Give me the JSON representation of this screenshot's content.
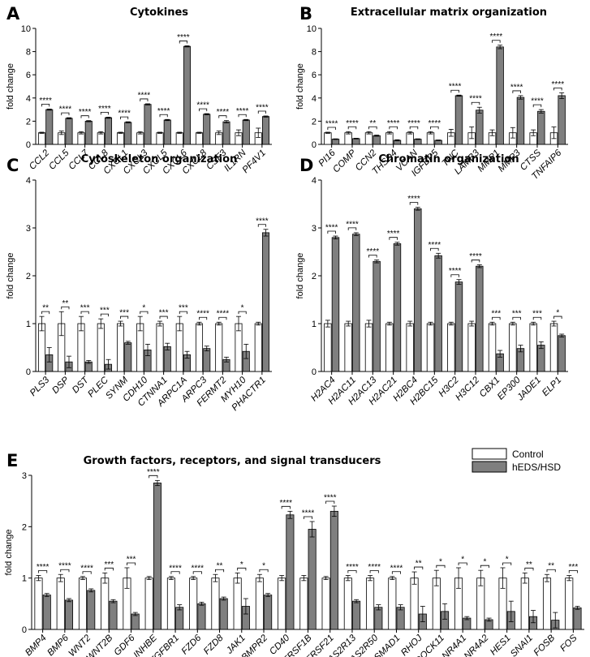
{
  "legend": {
    "control": "Control",
    "patient": "hEDS/HSD",
    "control_color": "#ffffff",
    "patient_color": "#7f7f7f"
  },
  "chart_data": [
    {
      "id": "A",
      "panel_label": "A",
      "type": "bar",
      "title": "Cytokines",
      "ylabel": "fold change",
      "ylim": [
        0,
        10
      ],
      "yticks": [
        0,
        2,
        4,
        6,
        8,
        10
      ],
      "categories": [
        "CCL2",
        "CCL5",
        "CCL7",
        "CCL8",
        "CXCL1",
        "CXCL3",
        "CXCL5",
        "CXCL6",
        "CXCL8",
        "CSF3",
        "IL1RN",
        "PF4V1"
      ],
      "series": [
        {
          "name": "Control",
          "values": [
            1,
            1,
            1,
            1,
            1,
            1,
            1,
            1,
            1,
            1,
            1,
            1
          ],
          "errors": [
            0.05,
            0.15,
            0.1,
            0.1,
            0.05,
            0.1,
            0.05,
            0.05,
            0.05,
            0.15,
            0.25,
            0.4
          ]
        },
        {
          "name": "hEDS/HSD",
          "values": [
            3.0,
            2.25,
            2.0,
            2.3,
            1.9,
            3.45,
            2.1,
            8.45,
            2.6,
            1.95,
            2.1,
            2.4
          ],
          "errors": [
            0.05,
            0.05,
            0.05,
            0.05,
            0.05,
            0.05,
            0.05,
            0.05,
            0.05,
            0.1,
            0.05,
            0.05
          ]
        }
      ],
      "significance": [
        "****",
        "****",
        "****",
        "****",
        "****",
        "****",
        "****",
        "****",
        "****",
        "****",
        "****",
        "****"
      ]
    },
    {
      "id": "B",
      "panel_label": "B",
      "type": "bar",
      "title": "Extracellular matrix organization",
      "ylabel": "fold change",
      "ylim": [
        0,
        10
      ],
      "yticks": [
        0,
        2,
        4,
        6,
        8,
        10
      ],
      "categories": [
        "PI16",
        "COMP",
        "CCN2",
        "THSD4",
        "VCAN",
        "IGFBP5",
        "TNC",
        "LAMB3",
        "MMP1",
        "MMP3",
        "CTSS",
        "TNFAIP6"
      ],
      "series": [
        {
          "name": "Control",
          "values": [
            1,
            1,
            1,
            1,
            1,
            1,
            1,
            1,
            1,
            1,
            1,
            1
          ],
          "errors": [
            0.05,
            0.1,
            0.1,
            0.1,
            0.1,
            0.1,
            0.3,
            0.5,
            0.25,
            0.45,
            0.25,
            0.5
          ]
        },
        {
          "name": "hEDS/HSD",
          "values": [
            0.45,
            0.5,
            0.75,
            0.35,
            0.45,
            0.35,
            4.2,
            2.95,
            8.4,
            4.05,
            2.85,
            4.2
          ],
          "errors": [
            0.03,
            0.03,
            0.05,
            0.05,
            0.03,
            0.03,
            0.05,
            0.25,
            0.15,
            0.15,
            0.15,
            0.25
          ]
        }
      ],
      "significance": [
        "****",
        "****",
        "**",
        "****",
        "****",
        "****",
        "****",
        "****",
        "****",
        "****",
        "****",
        "****"
      ]
    },
    {
      "id": "C",
      "panel_label": "C",
      "type": "bar",
      "title": "Cytoskeleton organization",
      "ylabel": "fold change",
      "ylim": [
        0,
        4
      ],
      "yticks": [
        0,
        1,
        2,
        3,
        4
      ],
      "categories": [
        "PLS3",
        "DSP",
        "DST",
        "PLEC",
        "SYNM",
        "CDH10",
        "CTNNA1",
        "ARPC1A",
        "ARPC3",
        "FERMT2",
        "MYH10",
        "PHACTR1"
      ],
      "series": [
        {
          "name": "Control",
          "values": [
            1,
            1,
            1,
            1,
            1,
            1,
            1,
            1,
            1,
            1,
            1,
            1
          ],
          "errors": [
            0.15,
            0.25,
            0.15,
            0.1,
            0.05,
            0.15,
            0.05,
            0.15,
            0.03,
            0.03,
            0.15,
            0.03
          ]
        },
        {
          "name": "hEDS/HSD",
          "values": [
            0.35,
            0.2,
            0.2,
            0.15,
            0.6,
            0.45,
            0.52,
            0.35,
            0.48,
            0.25,
            0.42,
            2.9
          ],
          "errors": [
            0.15,
            0.12,
            0.03,
            0.1,
            0.03,
            0.12,
            0.07,
            0.07,
            0.05,
            0.05,
            0.15,
            0.07
          ]
        }
      ],
      "significance": [
        "**",
        "**",
        "***",
        "***",
        "***",
        "*",
        "***",
        "***",
        "****",
        "****",
        "*",
        "****"
      ]
    },
    {
      "id": "D",
      "panel_label": "D",
      "type": "bar",
      "title": "Chromatin organization",
      "ylabel": "fold change",
      "ylim": [
        0,
        4
      ],
      "yticks": [
        0,
        1,
        2,
        3,
        4
      ],
      "categories": [
        "H2AC4",
        "H2AC11",
        "H2AC13",
        "H2AC21",
        "H2BC4",
        "H2BC15",
        "H3C2",
        "H3C12",
        "CBX1",
        "EP300",
        "JADE1",
        "ELP1"
      ],
      "series": [
        {
          "name": "Control",
          "values": [
            1,
            1,
            1,
            1,
            1,
            1,
            1,
            1,
            1,
            1,
            1,
            1
          ],
          "errors": [
            0.07,
            0.05,
            0.07,
            0.03,
            0.05,
            0.03,
            0.03,
            0.05,
            0.03,
            0.03,
            0.03,
            0.05
          ]
        },
        {
          "name": "hEDS/HSD",
          "values": [
            2.8,
            2.87,
            2.3,
            2.67,
            3.4,
            2.42,
            1.87,
            2.2,
            0.37,
            0.48,
            0.55,
            0.75
          ],
          "errors": [
            0.03,
            0.03,
            0.03,
            0.03,
            0.03,
            0.05,
            0.05,
            0.03,
            0.07,
            0.07,
            0.07,
            0.03
          ]
        }
      ],
      "significance": [
        "****",
        "****",
        "****",
        "****",
        "****",
        "****",
        "****",
        "****",
        "***",
        "***",
        "***",
        "*"
      ]
    },
    {
      "id": "E",
      "panel_label": "E",
      "type": "bar",
      "title": "Growth factors, receptors, and signal transducers",
      "ylabel": "fold change",
      "ylim": [
        0,
        3
      ],
      "yticks": [
        0,
        1,
        2,
        3
      ],
      "categories": [
        "BMP4",
        "BMP6",
        "WNT2",
        "WNT2B",
        "GDF6",
        "INHBE",
        "TGFBR1",
        "FZD6",
        "FZD8",
        "JAK1",
        "BMPR2",
        "CD40",
        "TNFRSF1B",
        "TNFRSF21",
        "TAS2R13",
        "TAS2R50",
        "SMAD1",
        "RHOJ",
        "DOCK11",
        "NR4A1",
        "NR4A2",
        "HES1",
        "SNAI1",
        "FOSB",
        "FOS"
      ],
      "series": [
        {
          "name": "Control",
          "values": [
            1,
            1,
            1,
            1,
            1,
            1,
            1,
            1,
            1,
            1,
            1,
            1,
            1,
            1,
            1,
            1,
            1,
            1,
            1,
            1,
            1,
            1,
            1,
            1,
            1
          ],
          "errors": [
            0.05,
            0.07,
            0.03,
            0.1,
            0.2,
            0.03,
            0.03,
            0.03,
            0.07,
            0.1,
            0.07,
            0.05,
            0.05,
            0.03,
            0.05,
            0.05,
            0.03,
            0.12,
            0.15,
            0.2,
            0.15,
            0.2,
            0.1,
            0.07,
            0.05
          ]
        },
        {
          "name": "hEDS/HSD",
          "values": [
            0.67,
            0.57,
            0.76,
            0.55,
            0.3,
            2.85,
            0.43,
            0.5,
            0.6,
            0.45,
            0.67,
            2.23,
            1.95,
            2.3,
            0.55,
            0.43,
            0.43,
            0.3,
            0.35,
            0.22,
            0.19,
            0.35,
            0.25,
            0.18,
            0.42
          ],
          "errors": [
            0.03,
            0.03,
            0.03,
            0.03,
            0.03,
            0.05,
            0.05,
            0.03,
            0.03,
            0.15,
            0.03,
            0.07,
            0.15,
            0.1,
            0.03,
            0.05,
            0.05,
            0.15,
            0.15,
            0.03,
            0.03,
            0.2,
            0.12,
            0.15,
            0.03
          ]
        }
      ],
      "significance": [
        "****",
        "****",
        "****",
        "***",
        "***",
        "****",
        "****",
        "****",
        "**",
        "*",
        "*",
        "****",
        "****",
        "****",
        "****",
        "****",
        "****",
        "**",
        "*",
        "*",
        "*",
        "*",
        "**",
        "**",
        "***"
      ]
    }
  ]
}
